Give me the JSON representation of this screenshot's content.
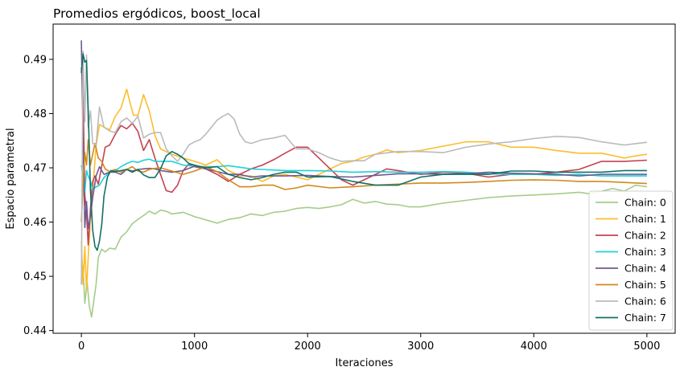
{
  "chart_data": {
    "type": "line",
    "title": "Promedios ergódicos, boost_local",
    "xlabel": "Iteraciones",
    "ylabel": "Espacio parametral",
    "xlim": [
      -250,
      5250
    ],
    "ylim": [
      0.4395,
      0.4965
    ],
    "xticks": [
      0,
      1000,
      2000,
      3000,
      4000,
      5000
    ],
    "yticks": [
      0.44,
      0.45,
      0.46,
      0.47,
      0.48,
      0.49
    ],
    "legend_position": "lower-right",
    "grid": false,
    "series": [
      {
        "name": "Chain: 0",
        "color": "#a5cc8a",
        "x": [
          0,
          15,
          30,
          50,
          70,
          90,
          110,
          130,
          150,
          180,
          210,
          250,
          300,
          350,
          400,
          450,
          500,
          550,
          600,
          650,
          700,
          750,
          800,
          900,
          1000,
          1100,
          1200,
          1300,
          1400,
          1500,
          1600,
          1700,
          1800,
          1900,
          2000,
          2100,
          2200,
          2300,
          2400,
          2500,
          2600,
          2700,
          2800,
          2900,
          3000,
          3200,
          3400,
          3600,
          3800,
          4000,
          4200,
          4400,
          4500,
          4600,
          4700,
          4800,
          4900,
          5000
        ],
        "y": [
          0.4485,
          0.452,
          0.445,
          0.449,
          0.4445,
          0.4425,
          0.4455,
          0.4485,
          0.4535,
          0.455,
          0.4545,
          0.4552,
          0.455,
          0.4572,
          0.4582,
          0.4597,
          0.4605,
          0.4612,
          0.462,
          0.4615,
          0.4622,
          0.462,
          0.4615,
          0.4618,
          0.461,
          0.4604,
          0.4598,
          0.4605,
          0.4608,
          0.4615,
          0.4612,
          0.4618,
          0.462,
          0.4625,
          0.4627,
          0.4625,
          0.4628,
          0.4632,
          0.4642,
          0.4635,
          0.4638,
          0.4633,
          0.4632,
          0.4628,
          0.4628,
          0.4635,
          0.464,
          0.4645,
          0.4648,
          0.465,
          0.4652,
          0.4655,
          0.4652,
          0.4657,
          0.4662,
          0.4657,
          0.4668,
          0.4665
        ]
      },
      {
        "name": "Chain: 1",
        "color": "#fbbd2d",
        "x": [
          0,
          15,
          30,
          45,
          60,
          80,
          100,
          130,
          160,
          200,
          250,
          300,
          350,
          400,
          430,
          460,
          500,
          550,
          600,
          650,
          700,
          800,
          900,
          1000,
          1100,
          1200,
          1300,
          1400,
          1500,
          1600,
          1700,
          1800,
          1900,
          2000,
          2100,
          2200,
          2300,
          2400,
          2500,
          2600,
          2700,
          2800,
          2900,
          3000,
          3200,
          3400,
          3600,
          3800,
          4000,
          4200,
          4400,
          4600,
          4800,
          4900,
          5000
        ],
        "y": [
          0.4565,
          0.4485,
          0.4555,
          0.4475,
          0.4535,
          0.4605,
          0.466,
          0.474,
          0.478,
          0.4775,
          0.477,
          0.4795,
          0.481,
          0.4845,
          0.482,
          0.4797,
          0.4797,
          0.4835,
          0.4805,
          0.476,
          0.4735,
          0.4725,
          0.4718,
          0.4712,
          0.4705,
          0.4715,
          0.4695,
          0.4685,
          0.4685,
          0.4675,
          0.4685,
          0.4688,
          0.4683,
          0.4678,
          0.4688,
          0.4698,
          0.4708,
          0.4712,
          0.472,
          0.4725,
          0.4733,
          0.4728,
          0.473,
          0.4732,
          0.474,
          0.4748,
          0.4748,
          0.4738,
          0.4738,
          0.4732,
          0.4727,
          0.4727,
          0.4718,
          0.4722,
          0.4725
        ]
      },
      {
        "name": "Chain: 2",
        "color": "#c44251",
        "x": [
          0,
          15,
          30,
          45,
          60,
          80,
          100,
          120,
          150,
          180,
          210,
          250,
          300,
          350,
          400,
          450,
          500,
          550,
          600,
          650,
          700,
          750,
          800,
          850,
          900,
          950,
          1000,
          1100,
          1200,
          1300,
          1400,
          1500,
          1600,
          1700,
          1800,
          1900,
          2000,
          2100,
          2200,
          2300,
          2400,
          2500,
          2600,
          2700,
          2800,
          3000,
          3200,
          3400,
          3600,
          3800,
          4000,
          4200,
          4400,
          4600,
          4800,
          5000
        ],
        "y": [
          0.4885,
          0.484,
          0.465,
          0.4618,
          0.4558,
          0.4625,
          0.4675,
          0.4685,
          0.467,
          0.4703,
          0.4738,
          0.4742,
          0.4762,
          0.4778,
          0.4772,
          0.4782,
          0.4767,
          0.4732,
          0.4752,
          0.4718,
          0.4688,
          0.4658,
          0.4655,
          0.4668,
          0.4695,
          0.4707,
          0.4702,
          0.4698,
          0.4688,
          0.4675,
          0.4688,
          0.4698,
          0.4705,
          0.4715,
          0.4727,
          0.4738,
          0.4738,
          0.4718,
          0.4698,
          0.4678,
          0.4668,
          0.4678,
          0.4688,
          0.4698,
          0.4695,
          0.4688,
          0.4692,
          0.469,
          0.4683,
          0.4688,
          0.4688,
          0.4692,
          0.4697,
          0.4712,
          0.4712,
          0.4714
        ]
      },
      {
        "name": "Chain: 3",
        "color": "#1dd1da",
        "x": [
          0,
          15,
          30,
          45,
          60,
          80,
          100,
          130,
          160,
          200,
          250,
          300,
          350,
          400,
          450,
          500,
          550,
          600,
          650,
          700,
          800,
          900,
          1000,
          1100,
          1200,
          1300,
          1400,
          1500,
          1600,
          1800,
          2000,
          2200,
          2400,
          2600,
          2800,
          3000,
          3200,
          3400,
          3600,
          3800,
          4000,
          4200,
          4400,
          4600,
          4800,
          5000
        ],
        "y": [
          0.4705,
          0.4685,
          0.4655,
          0.4695,
          0.4685,
          0.4675,
          0.466,
          0.4665,
          0.4668,
          0.4682,
          0.4692,
          0.4695,
          0.4702,
          0.4708,
          0.4712,
          0.471,
          0.4714,
          0.4716,
          0.4712,
          0.4712,
          0.4712,
          0.4705,
          0.4703,
          0.4702,
          0.4702,
          0.4704,
          0.4701,
          0.4698,
          0.4697,
          0.4695,
          0.4695,
          0.4694,
          0.4692,
          0.4693,
          0.4692,
          0.4692,
          0.4693,
          0.4692,
          0.4689,
          0.4688,
          0.4688,
          0.4686,
          0.4688,
          0.4685,
          0.4685,
          0.4685
        ]
      },
      {
        "name": "Chain: 4",
        "color": "#6f5a90",
        "x": [
          0,
          15,
          30,
          45,
          60,
          80,
          100,
          130,
          160,
          200,
          250,
          300,
          350,
          400,
          450,
          500,
          550,
          600,
          650,
          700,
          800,
          900,
          1000,
          1100,
          1200,
          1300,
          1400,
          1500,
          1600,
          1800,
          2000,
          2200,
          2400,
          2600,
          2800,
          3000,
          3200,
          3400,
          3600,
          3800,
          4000,
          4200,
          4400,
          4600,
          4800,
          5000
        ],
        "y": [
          0.4935,
          0.4755,
          0.459,
          0.4638,
          0.4588,
          0.4612,
          0.4645,
          0.4685,
          0.4702,
          0.4688,
          0.4692,
          0.4692,
          0.4688,
          0.4697,
          0.4694,
          0.4697,
          0.4698,
          0.4699,
          0.4698,
          0.4695,
          0.4692,
          0.4695,
          0.4703,
          0.4698,
          0.4693,
          0.4688,
          0.4688,
          0.4683,
          0.4685,
          0.4685,
          0.4686,
          0.4684,
          0.4683,
          0.4686,
          0.4689,
          0.4689,
          0.4688,
          0.4689,
          0.4692,
          0.469,
          0.4689,
          0.4688,
          0.4685,
          0.4688,
          0.4688,
          0.4688
        ]
      },
      {
        "name": "Chain: 5",
        "color": "#d1891b",
        "x": [
          0,
          15,
          30,
          45,
          60,
          80,
          100,
          120,
          150,
          180,
          210,
          250,
          300,
          350,
          400,
          450,
          500,
          550,
          600,
          650,
          700,
          800,
          900,
          1000,
          1100,
          1200,
          1300,
          1400,
          1500,
          1600,
          1700,
          1800,
          1900,
          2000,
          2200,
          2400,
          2600,
          2800,
          3000,
          3200,
          3400,
          3600,
          3800,
          4000,
          4200,
          4400,
          4600,
          4800,
          5000
        ],
        "y": [
          0.46,
          0.4668,
          0.4728,
          0.4705,
          0.4752,
          0.4705,
          0.4725,
          0.4745,
          0.4718,
          0.4712,
          0.4698,
          0.4693,
          0.4697,
          0.4692,
          0.4697,
          0.4702,
          0.4694,
          0.4692,
          0.4697,
          0.4699,
          0.47,
          0.4694,
          0.4688,
          0.4694,
          0.4702,
          0.4693,
          0.4678,
          0.4665,
          0.4665,
          0.4668,
          0.4668,
          0.466,
          0.4663,
          0.4668,
          0.4663,
          0.4665,
          0.4668,
          0.467,
          0.4672,
          0.4672,
          0.4673,
          0.4675,
          0.4677,
          0.4678,
          0.4677,
          0.4675,
          0.4675,
          0.4673,
          0.4671
        ]
      },
      {
        "name": "Chain: 6",
        "color": "#bbbbbb",
        "x": [
          0,
          15,
          30,
          45,
          60,
          80,
          100,
          130,
          160,
          200,
          250,
          300,
          350,
          400,
          450,
          500,
          550,
          600,
          650,
          700,
          750,
          800,
          850,
          900,
          950,
          1000,
          1050,
          1100,
          1150,
          1200,
          1250,
          1300,
          1350,
          1400,
          1450,
          1500,
          1600,
          1700,
          1800,
          1900,
          2000,
          2100,
          2200,
          2300,
          2400,
          2500,
          2600,
          2800,
          3000,
          3200,
          3400,
          3600,
          3800,
          4000,
          4200,
          4400,
          4600,
          4800,
          5000
        ],
        "y": [
          0.4485,
          0.4915,
          0.4785,
          0.4908,
          0.4775,
          0.4805,
          0.4745,
          0.4742,
          0.4812,
          0.4775,
          0.4768,
          0.4765,
          0.4785,
          0.4792,
          0.4782,
          0.4795,
          0.4755,
          0.4762,
          0.4765,
          0.4765,
          0.4735,
          0.4722,
          0.4712,
          0.4725,
          0.4742,
          0.4748,
          0.4752,
          0.4762,
          0.4775,
          0.4788,
          0.4795,
          0.48,
          0.479,
          0.4762,
          0.4748,
          0.4745,
          0.4752,
          0.4755,
          0.476,
          0.4735,
          0.4735,
          0.4728,
          0.4718,
          0.4712,
          0.4713,
          0.4713,
          0.4725,
          0.473,
          0.473,
          0.4728,
          0.4738,
          0.4744,
          0.4748,
          0.4754,
          0.4758,
          0.4756,
          0.4748,
          0.4742,
          0.4747
        ]
      },
      {
        "name": "Chain: 7",
        "color": "#117165",
        "x": [
          0,
          15,
          30,
          45,
          60,
          80,
          100,
          120,
          140,
          160,
          180,
          200,
          230,
          260,
          300,
          350,
          400,
          450,
          500,
          550,
          600,
          650,
          700,
          750,
          800,
          850,
          900,
          950,
          1000,
          1100,
          1200,
          1300,
          1400,
          1500,
          1600,
          1700,
          1800,
          1900,
          2000,
          2200,
          2400,
          2600,
          2800,
          3000,
          3200,
          3400,
          3600,
          3800,
          4000,
          4200,
          4400,
          4600,
          4800,
          5000
        ],
        "y": [
          0.4875,
          0.491,
          0.4895,
          0.4898,
          0.4808,
          0.4658,
          0.4585,
          0.4555,
          0.4548,
          0.4565,
          0.4595,
          0.4648,
          0.4683,
          0.4695,
          0.4693,
          0.4695,
          0.4697,
          0.4692,
          0.4697,
          0.4687,
          0.4682,
          0.4682,
          0.4698,
          0.4722,
          0.473,
          0.4725,
          0.4718,
          0.4708,
          0.4705,
          0.47,
          0.4702,
          0.4688,
          0.4682,
          0.4678,
          0.4682,
          0.4688,
          0.4692,
          0.4692,
          0.4683,
          0.4684,
          0.4675,
          0.4668,
          0.4668,
          0.4683,
          0.4688,
          0.4688,
          0.4688,
          0.4694,
          0.4694,
          0.4692,
          0.4692,
          0.4692,
          0.4695,
          0.4695
        ]
      }
    ]
  }
}
